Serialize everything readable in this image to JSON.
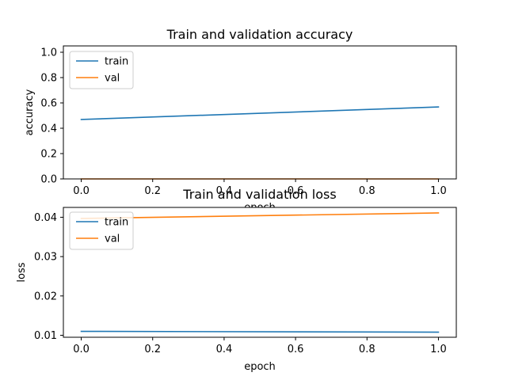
{
  "chart_data": [
    {
      "type": "line",
      "title": "Train and validation accuracy",
      "xlabel": "epoch",
      "ylabel": "accuracy",
      "xlim": [
        -0.05,
        1.05
      ],
      "ylim": [
        0.0,
        1.05
      ],
      "xticks": [
        0.0,
        0.2,
        0.4,
        0.6,
        0.8,
        1.0
      ],
      "xtick_labels": [
        "0.0",
        "0.2",
        "0.4",
        "0.6",
        "0.8",
        "1.0"
      ],
      "yticks": [
        0.0,
        0.2,
        0.4,
        0.6,
        0.8,
        1.0
      ],
      "ytick_labels": [
        "0.0",
        "0.2",
        "0.4",
        "0.6",
        "0.8",
        "1.0"
      ],
      "legend_position": "upper left",
      "grid": false,
      "series": [
        {
          "name": "train",
          "color": "#1f77b4",
          "x": [
            0,
            1
          ],
          "values": [
            0.469,
            0.568
          ]
        },
        {
          "name": "val",
          "color": "#ff7f0e",
          "x": [
            0,
            1
          ],
          "values": [
            0.0,
            0.0
          ]
        }
      ]
    },
    {
      "type": "line",
      "title": "Train and validation loss",
      "xlabel": "epoch",
      "ylabel": "loss",
      "xlim": [
        -0.05,
        1.05
      ],
      "ylim": [
        0.0095,
        0.0425
      ],
      "xticks": [
        0.0,
        0.2,
        0.4,
        0.6,
        0.8,
        1.0
      ],
      "xtick_labels": [
        "0.0",
        "0.2",
        "0.4",
        "0.6",
        "0.8",
        "1.0"
      ],
      "yticks": [
        0.01,
        0.02,
        0.03,
        0.04
      ],
      "ytick_labels": [
        "0.01",
        "0.02",
        "0.03",
        "0.04"
      ],
      "legend_position": "upper left",
      "grid": false,
      "series": [
        {
          "name": "train",
          "color": "#1f77b4",
          "x": [
            0,
            1
          ],
          "values": [
            0.011,
            0.0108
          ]
        },
        {
          "name": "val",
          "color": "#ff7f0e",
          "x": [
            0,
            1
          ],
          "values": [
            0.0397,
            0.0411
          ]
        }
      ]
    }
  ]
}
